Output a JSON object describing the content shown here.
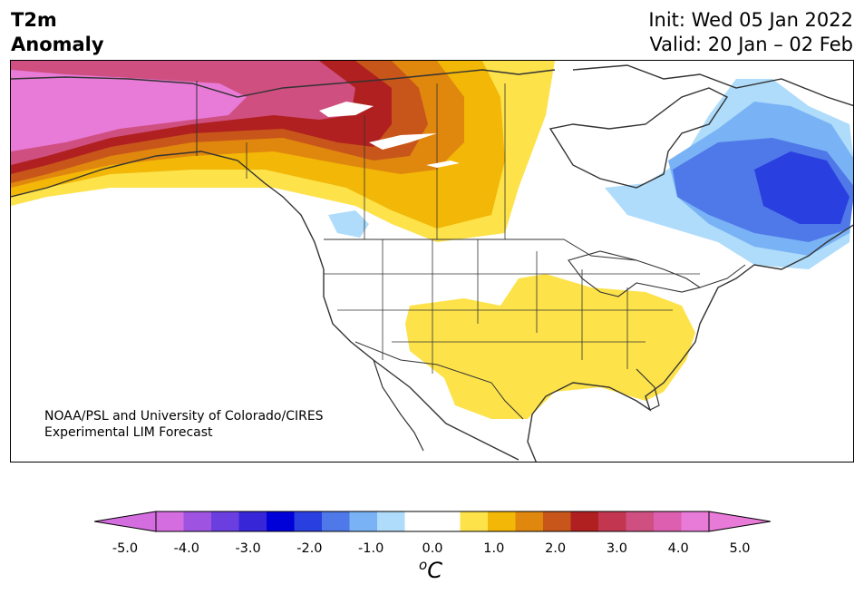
{
  "header": {
    "variable_line1": "T2m",
    "variable_line2": "Anomaly",
    "init_line": "Init: Wed 05 Jan 2022",
    "valid_line": "Valid: 20 Jan – 02 Feb"
  },
  "credit": {
    "line1": "NOAA/PSL and University of Colorado/CIRES",
    "line2": "Experimental LIM Forecast"
  },
  "colorbar": {
    "unit_base": "C",
    "unit_sup": "o",
    "ticks": [
      "-5.0",
      "-4.0",
      "-3.0",
      "-2.0",
      "-1.0",
      "0.0",
      "1.0",
      "2.0",
      "3.0",
      "4.0",
      "5.0"
    ],
    "colors": [
      "#d46ee0",
      "#9e54e0",
      "#6b3ee0",
      "#3726d8",
      "#0000d8",
      "#2a3fe0",
      "#4f78e8",
      "#79b3f5",
      "#aedcfa",
      "#ffffff",
      "#ffffff",
      "#fde24a",
      "#f2b707",
      "#e0870e",
      "#c8561a",
      "#b02020",
      "#c33650",
      "#cf4f80",
      "#dc5fb0",
      "#e87ad8"
    ],
    "min_arrow_color": "#d46ee0",
    "max_arrow_color": "#e87ad8"
  },
  "map": {
    "region": "North America",
    "anomaly_colors": {
      "strong_warm": "#e87ad8",
      "warm_4": "#cf4f80",
      "warm_3": "#b02020",
      "warm_2": "#c8561a",
      "warm_15": "#e0870e",
      "warm_1": "#f2b707",
      "warm_05": "#fde24a",
      "cool_1": "#aedcfa",
      "cool_15": "#79b3f5",
      "cool_2": "#4f78e8",
      "cool_3": "#2a3fe0"
    }
  }
}
